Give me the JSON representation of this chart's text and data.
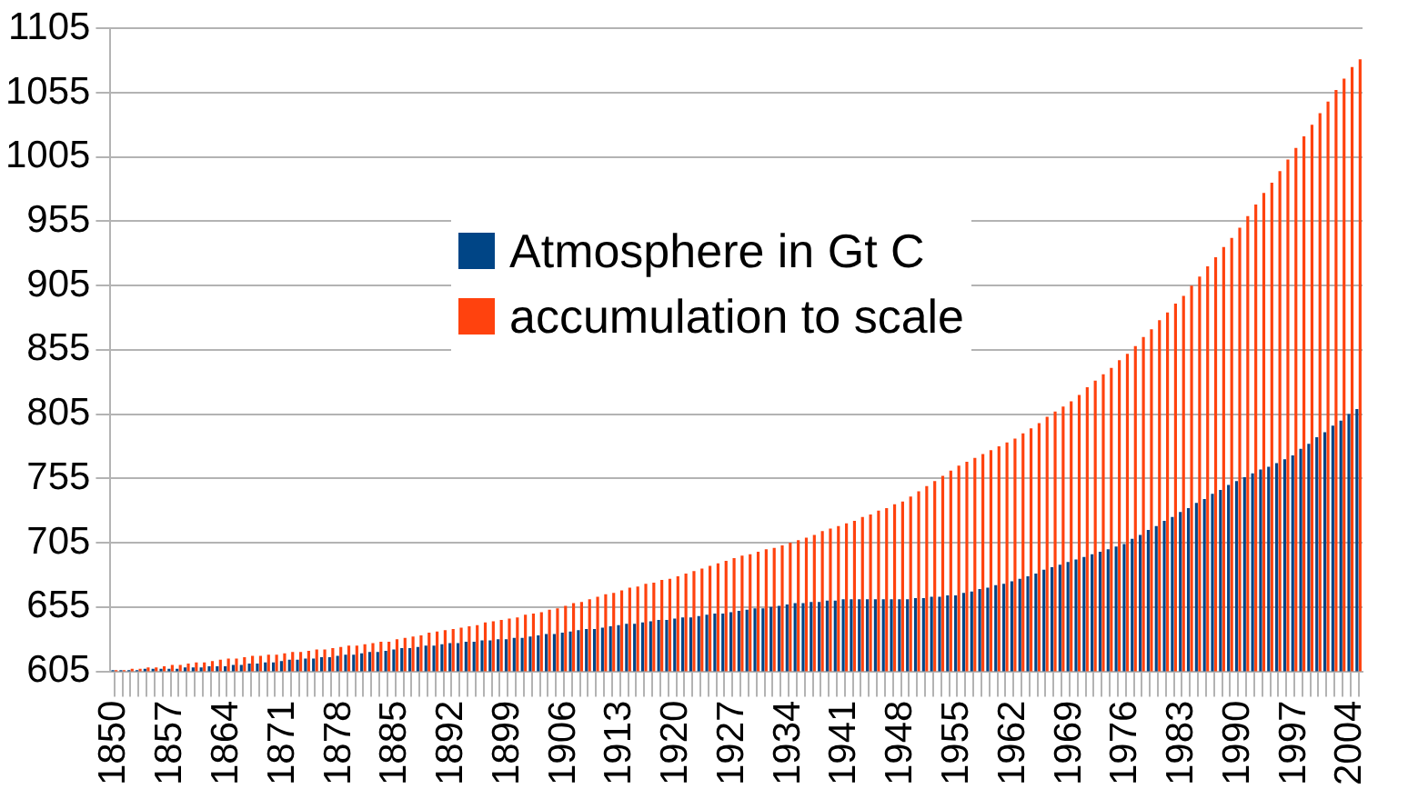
{
  "chart_data": {
    "type": "bar",
    "categories": [
      "1850",
      null,
      null,
      null,
      null,
      null,
      null,
      "1857",
      null,
      null,
      null,
      null,
      null,
      null,
      "1864",
      null,
      null,
      null,
      null,
      null,
      null,
      "1871",
      null,
      null,
      null,
      null,
      null,
      null,
      "1878",
      null,
      null,
      null,
      null,
      null,
      null,
      "1885",
      null,
      null,
      null,
      null,
      null,
      null,
      "1892",
      null,
      null,
      null,
      null,
      null,
      null,
      "1899",
      null,
      null,
      null,
      null,
      null,
      null,
      "1906",
      null,
      null,
      null,
      null,
      null,
      null,
      "1913",
      null,
      null,
      null,
      null,
      null,
      null,
      "1920",
      null,
      null,
      null,
      null,
      null,
      null,
      "1927",
      null,
      null,
      null,
      null,
      null,
      null,
      "1934",
      null,
      null,
      null,
      null,
      null,
      null,
      "1941",
      null,
      null,
      null,
      null,
      null,
      null,
      "1948",
      null,
      null,
      null,
      null,
      null,
      null,
      "1955",
      null,
      null,
      null,
      null,
      null,
      null,
      "1962",
      null,
      null,
      null,
      null,
      null,
      null,
      "1969",
      null,
      null,
      null,
      null,
      null,
      null,
      "1976",
      null,
      null,
      null,
      null,
      null,
      null,
      "1983",
      null,
      null,
      null,
      null,
      null,
      null,
      "1990",
      null,
      null,
      null,
      null,
      null,
      null,
      "1997",
      null,
      null,
      null,
      null,
      null,
      null,
      "2004",
      null
    ],
    "series": [
      {
        "name": "Atmosphere in Gt C",
        "color": "#004586",
        "values": [
          606,
          606,
          606,
          606,
          607,
          607,
          607,
          607,
          607,
          608,
          608,
          608,
          609,
          609,
          609,
          610,
          610,
          611,
          611,
          612,
          612,
          613,
          614,
          614,
          615,
          615,
          616,
          616,
          617,
          618,
          618,
          619,
          620,
          620,
          621,
          622,
          623,
          623,
          624,
          625,
          625,
          626,
          627,
          627,
          628,
          628,
          629,
          629,
          630,
          630,
          631,
          631,
          632,
          633,
          634,
          634,
          635,
          636,
          637,
          638,
          638,
          639,
          640,
          641,
          642,
          642,
          643,
          644,
          645,
          645,
          646,
          647,
          647,
          648,
          649,
          650,
          650,
          651,
          652,
          653,
          654,
          654,
          655,
          656,
          657,
          658,
          658,
          659,
          659,
          660,
          660,
          661,
          661,
          661,
          661,
          661,
          661,
          661,
          661,
          661,
          662,
          662,
          663,
          663,
          664,
          664,
          666,
          667,
          669,
          670,
          672,
          673,
          675,
          677,
          679,
          681,
          684,
          686,
          688,
          690,
          692,
          694,
          696,
          698,
          700,
          702,
          704,
          708,
          711,
          715,
          718,
          722,
          725,
          729,
          732,
          736,
          739,
          743,
          746,
          750,
          753,
          756,
          759,
          762,
          764,
          767,
          770,
          773,
          778,
          782,
          787,
          791,
          796,
          800,
          805,
          809
        ]
      },
      {
        "name": "accumulation to scale",
        "color": "#ff420e",
        "values": [
          606,
          606,
          607,
          607,
          608,
          608,
          609,
          610,
          610,
          611,
          612,
          612,
          613,
          614,
          615,
          615,
          616,
          617,
          617,
          618,
          618,
          619,
          620,
          620,
          621,
          622,
          622,
          623,
          624,
          625,
          625,
          626,
          627,
          628,
          628,
          630,
          631,
          632,
          633,
          635,
          636,
          637,
          638,
          639,
          640,
          641,
          643,
          644,
          645,
          646,
          647,
          649,
          650,
          651,
          653,
          654,
          656,
          658,
          659,
          661,
          663,
          665,
          666,
          668,
          670,
          671,
          673,
          674,
          676,
          677,
          679,
          681,
          683,
          685,
          687,
          689,
          691,
          693,
          695,
          696,
          698,
          700,
          701,
          703,
          705,
          707,
          709,
          711,
          714,
          716,
          718,
          720,
          722,
          725,
          727,
          730,
          732,
          735,
          737,
          741,
          745,
          749,
          753,
          757,
          761,
          765,
          768,
          771,
          774,
          777,
          780,
          783,
          786,
          790,
          794,
          798,
          803,
          807,
          811,
          815,
          820,
          826,
          831,
          836,
          841,
          847,
          852,
          858,
          865,
          871,
          878,
          884,
          891,
          897,
          905,
          912,
          920,
          927,
          935,
          942,
          950,
          959,
          968,
          977,
          985,
          994,
          1003,
          1012,
          1021,
          1030,
          1039,
          1048,
          1057,
          1066,
          1075,
          1081
        ]
      }
    ],
    "ylim": [
      605,
      1105
    ],
    "yticks": [
      605,
      655,
      705,
      755,
      805,
      855,
      905,
      955,
      1005,
      1055,
      1105
    ],
    "grid": "y",
    "legend": "center"
  }
}
